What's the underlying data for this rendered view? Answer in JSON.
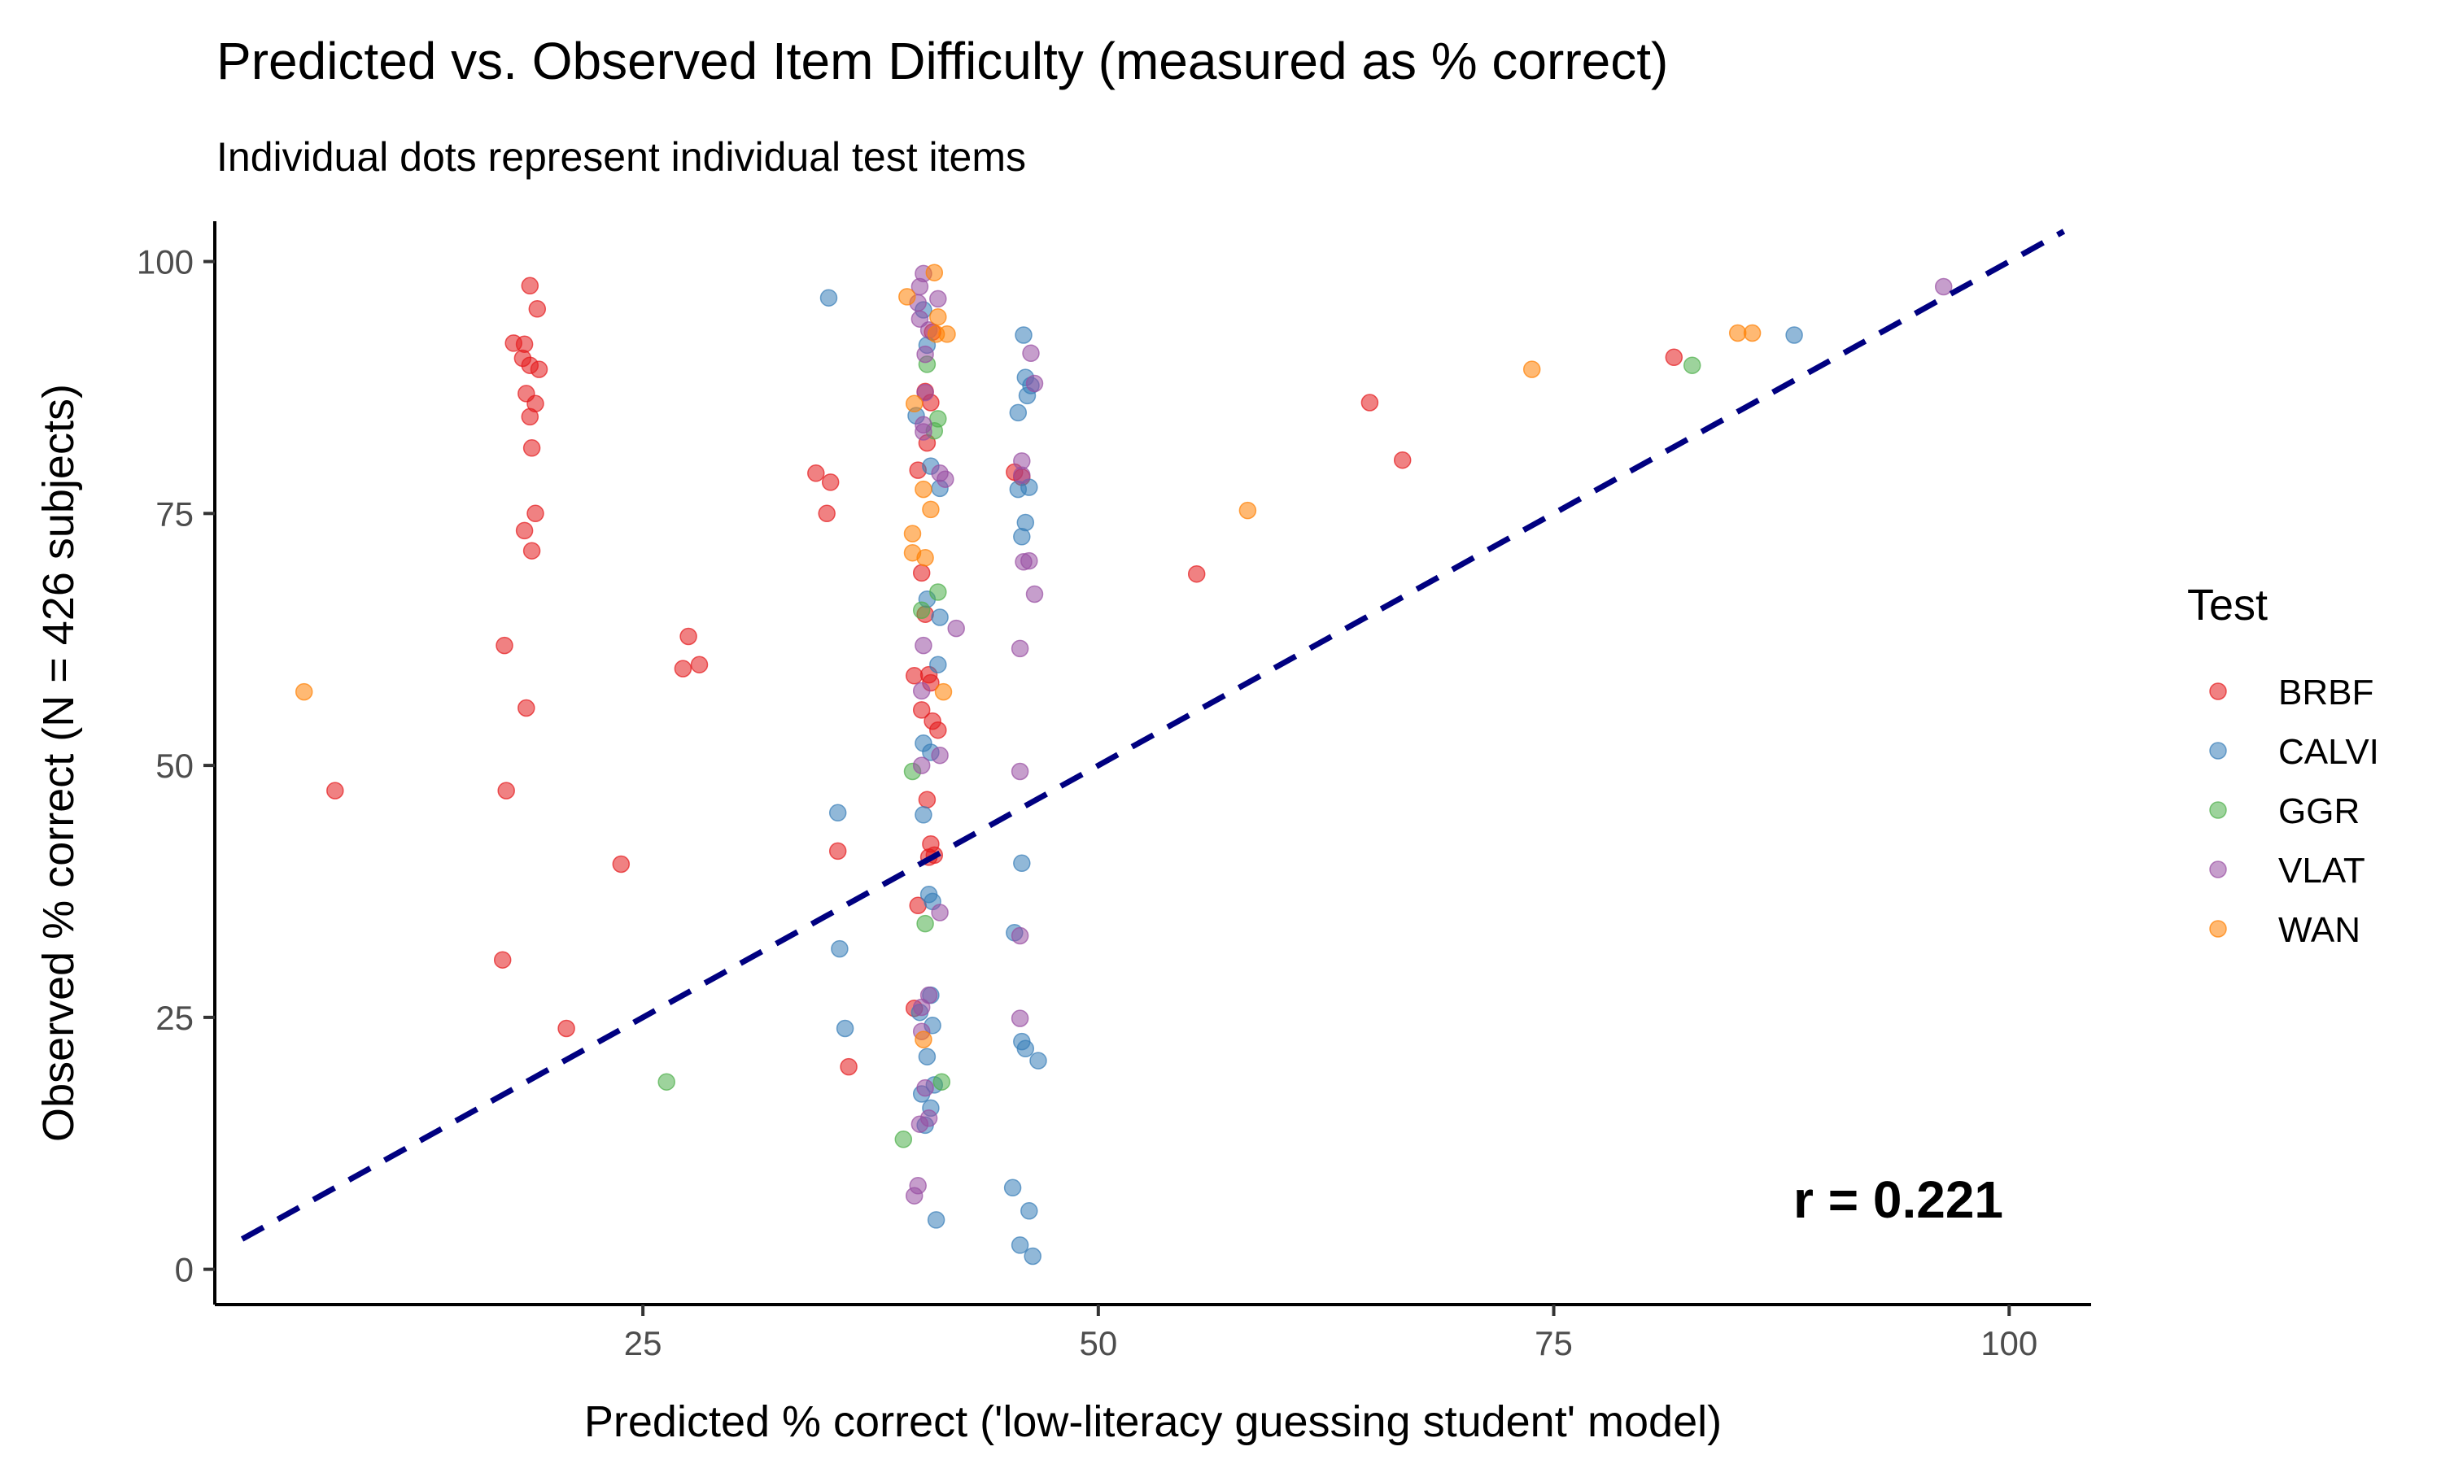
{
  "chart_data": {
    "type": "scatter",
    "title": "Predicted vs. Observed Item Difficulty (measured as % correct)",
    "subtitle": "Individual dots represent individual test items",
    "xlabel": "Predicted % correct ('low-literacy guessing student' model)",
    "ylabel": "Observed % correct (N = 426 subjects)",
    "xlim": [
      1.5,
      104.5
    ],
    "ylim": [
      -3.5,
      104
    ],
    "xticks": [
      25,
      50,
      75,
      100
    ],
    "yticks": [
      0,
      25,
      50,
      75,
      100
    ],
    "grid": false,
    "legend": {
      "title": "Test",
      "placement": "right"
    },
    "reference_line": {
      "style": "dashed",
      "color": "#000080",
      "from": [
        3,
        3
      ],
      "to": [
        103,
        103
      ]
    },
    "annotation": "r = 0.221",
    "series": [
      {
        "name": "BRBF",
        "color": "#E41A1C",
        "points": [
          [
            18.8,
            97.6
          ],
          [
            19.2,
            95.3
          ],
          [
            17.9,
            91.9
          ],
          [
            18.5,
            91.8
          ],
          [
            18.4,
            90.4
          ],
          [
            18.8,
            89.7
          ],
          [
            19.3,
            89.3
          ],
          [
            18.6,
            86.9
          ],
          [
            19.1,
            85.9
          ],
          [
            18.8,
            84.6
          ],
          [
            18.9,
            81.5
          ],
          [
            19.1,
            75.0
          ],
          [
            18.5,
            73.3
          ],
          [
            18.9,
            71.3
          ],
          [
            17.4,
            61.9
          ],
          [
            27.5,
            62.8
          ],
          [
            28.1,
            60.0
          ],
          [
            27.2,
            59.6
          ],
          [
            18.6,
            55.7
          ],
          [
            17.5,
            47.5
          ],
          [
            8.1,
            47.5
          ],
          [
            23.8,
            40.2
          ],
          [
            17.3,
            30.7
          ],
          [
            20.8,
            23.9
          ],
          [
            34.5,
            79.0
          ],
          [
            35.3,
            78.1
          ],
          [
            35.1,
            75.0
          ],
          [
            35.7,
            41.5
          ],
          [
            36.3,
            20.1
          ],
          [
            40.1,
            79.3
          ],
          [
            40.5,
            87.1
          ],
          [
            40.8,
            86.0
          ],
          [
            40.9,
            93.0
          ],
          [
            40.6,
            82.0
          ],
          [
            40.3,
            69.1
          ],
          [
            40.5,
            65.0
          ],
          [
            39.9,
            58.9
          ],
          [
            40.8,
            58.2
          ],
          [
            40.7,
            59.0
          ],
          [
            40.3,
            55.5
          ],
          [
            40.9,
            54.4
          ],
          [
            41.2,
            53.5
          ],
          [
            40.6,
            46.6
          ],
          [
            40.8,
            42.2
          ],
          [
            41.0,
            41.1
          ],
          [
            40.7,
            40.9
          ],
          [
            40.1,
            36.1
          ],
          [
            39.9,
            25.9
          ],
          [
            45.4,
            79.1
          ],
          [
            45.8,
            78.6
          ],
          [
            55.4,
            69.0
          ],
          [
            64.9,
            86.0
          ],
          [
            66.7,
            80.3
          ],
          [
            81.6,
            90.5
          ]
        ]
      },
      {
        "name": "CALVI",
        "color": "#377EB8",
        "points": [
          [
            35.2,
            96.4
          ],
          [
            35.7,
            45.3
          ],
          [
            35.8,
            31.8
          ],
          [
            36.1,
            23.9
          ],
          [
            40.4,
            95.2
          ],
          [
            40.6,
            91.7
          ],
          [
            40.0,
            84.7
          ],
          [
            40.8,
            79.7
          ],
          [
            41.3,
            77.5
          ],
          [
            40.6,
            66.5
          ],
          [
            41.3,
            64.7
          ],
          [
            41.2,
            60.0
          ],
          [
            40.4,
            52.2
          ],
          [
            40.8,
            51.3
          ],
          [
            40.4,
            45.1
          ],
          [
            40.7,
            37.2
          ],
          [
            40.9,
            36.5
          ],
          [
            40.2,
            25.5
          ],
          [
            40.8,
            27.2
          ],
          [
            40.9,
            24.2
          ],
          [
            40.6,
            21.1
          ],
          [
            41.0,
            18.3
          ],
          [
            40.3,
            17.4
          ],
          [
            40.8,
            16.0
          ],
          [
            40.5,
            14.3
          ],
          [
            41.1,
            4.9
          ],
          [
            45.9,
            92.7
          ],
          [
            46.0,
            88.5
          ],
          [
            46.3,
            87.7
          ],
          [
            46.1,
            86.7
          ],
          [
            45.6,
            85.0
          ],
          [
            46.2,
            77.6
          ],
          [
            45.6,
            77.4
          ],
          [
            46.0,
            74.1
          ],
          [
            45.8,
            72.7
          ],
          [
            45.8,
            40.3
          ],
          [
            45.4,
            33.4
          ],
          [
            45.8,
            22.6
          ],
          [
            46.0,
            21.9
          ],
          [
            46.7,
            20.7
          ],
          [
            45.3,
            8.1
          ],
          [
            46.2,
            5.8
          ],
          [
            45.7,
            2.4
          ],
          [
            46.4,
            1.3
          ],
          [
            88.2,
            92.7
          ]
        ]
      },
      {
        "name": "GGR",
        "color": "#4DAF4A",
        "points": [
          [
            26.3,
            18.6
          ],
          [
            40.6,
            89.8
          ],
          [
            41.2,
            84.4
          ],
          [
            41.0,
            83.2
          ],
          [
            41.2,
            67.2
          ],
          [
            40.3,
            65.4
          ],
          [
            39.8,
            49.4
          ],
          [
            40.5,
            34.3
          ],
          [
            41.4,
            18.6
          ],
          [
            39.3,
            12.9
          ],
          [
            82.6,
            89.7
          ]
        ]
      },
      {
        "name": "VLAT",
        "color": "#984EA3",
        "points": [
          [
            40.4,
            98.8
          ],
          [
            40.2,
            97.5
          ],
          [
            41.2,
            96.3
          ],
          [
            40.1,
            95.9
          ],
          [
            40.2,
            94.3
          ],
          [
            40.7,
            93.2
          ],
          [
            40.5,
            90.8
          ],
          [
            40.5,
            87.0
          ],
          [
            40.4,
            83.8
          ],
          [
            40.4,
            83.1
          ],
          [
            41.3,
            79.0
          ],
          [
            41.6,
            78.4
          ],
          [
            42.2,
            63.6
          ],
          [
            40.4,
            61.9
          ],
          [
            40.3,
            57.4
          ],
          [
            41.3,
            51.0
          ],
          [
            40.3,
            50.0
          ],
          [
            41.3,
            35.4
          ],
          [
            40.3,
            26.0
          ],
          [
            40.7,
            27.2
          ],
          [
            40.3,
            23.6
          ],
          [
            40.5,
            18.0
          ],
          [
            40.7,
            15.0
          ],
          [
            40.2,
            14.4
          ],
          [
            40.1,
            8.3
          ],
          [
            39.9,
            7.3
          ],
          [
            46.3,
            90.9
          ],
          [
            46.5,
            87.9
          ],
          [
            45.8,
            80.2
          ],
          [
            45.8,
            78.8
          ],
          [
            46.2,
            70.3
          ],
          [
            45.9,
            70.2
          ],
          [
            46.5,
            67.0
          ],
          [
            45.7,
            61.6
          ],
          [
            45.7,
            49.4
          ],
          [
            45.7,
            33.1
          ],
          [
            45.7,
            24.9
          ],
          [
            96.4,
            97.5
          ]
        ]
      },
      {
        "name": "WAN",
        "color": "#FF7F00",
        "points": [
          [
            6.4,
            57.3
          ],
          [
            39.5,
            96.5
          ],
          [
            41.0,
            98.9
          ],
          [
            41.2,
            94.5
          ],
          [
            41.1,
            92.8
          ],
          [
            41.7,
            92.8
          ],
          [
            39.9,
            85.9
          ],
          [
            40.4,
            77.4
          ],
          [
            40.8,
            75.4
          ],
          [
            39.8,
            73.0
          ],
          [
            39.8,
            71.1
          ],
          [
            40.5,
            70.6
          ],
          [
            41.5,
            57.3
          ],
          [
            40.4,
            22.8
          ],
          [
            58.2,
            75.3
          ],
          [
            73.8,
            89.3
          ],
          [
            85.1,
            92.9
          ],
          [
            85.9,
            92.9
          ]
        ]
      }
    ]
  }
}
